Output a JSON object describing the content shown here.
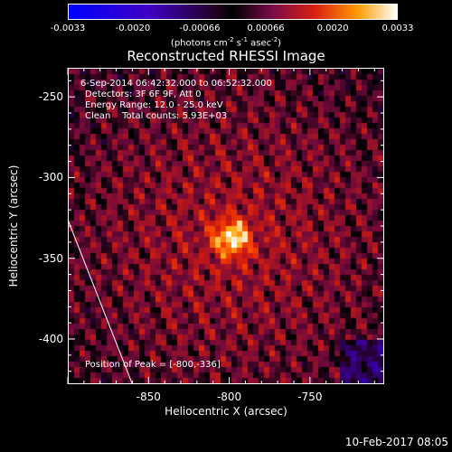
{
  "colorbar": {
    "ticks": [
      "-0.0033",
      "-0.0020",
      "-0.00066",
      "0.00066",
      "0.0020",
      "0.0033"
    ],
    "tick_values": [
      -0.0033,
      -0.002,
      -0.00066,
      0.00066,
      0.002,
      0.0033
    ],
    "range": [
      -0.0033,
      0.0033
    ],
    "units_prefix": "(photons cm",
    "units_exp1": "-2",
    "units_mid": " s",
    "units_exp2": "-1",
    "units_mid2": " asec",
    "units_exp3": "-2",
    "units_suffix": ")"
  },
  "title": "Reconstructed RHESSI Image",
  "info": {
    "time": "6-Sep-2014 06:42:32.000 to 06:52:32.000",
    "detectors": "Detectors: 3F 6F 9F, Att 0",
    "energy": "Energy Range: 12.0 - 25.0 keV",
    "clean": "Clean    Total counts: 5.93E+03",
    "peak": "Position of Peak = [-800,-336]"
  },
  "chart_data": {
    "type": "heatmap",
    "title": "Reconstructed RHESSI Image",
    "xlabel": "Heliocentric X (arcsec)",
    "ylabel": "Heliocentric Y (arcsec)",
    "xlim": [
      -900,
      -704
    ],
    "ylim": [
      -428,
      -232
    ],
    "xticks": [
      "-850",
      "-800",
      "-750"
    ],
    "xtick_values": [
      -850,
      -800,
      -750
    ],
    "yticks": [
      "-250",
      "-300",
      "-350",
      "-400"
    ],
    "ytick_values": [
      -250,
      -300,
      -350,
      -400
    ],
    "peak": {
      "x": -800,
      "y": -336
    },
    "limb_line": [
      [
        -900,
        -326
      ],
      [
        -860,
        -428
      ]
    ]
  },
  "footer": "10-Feb-2017 08:05"
}
